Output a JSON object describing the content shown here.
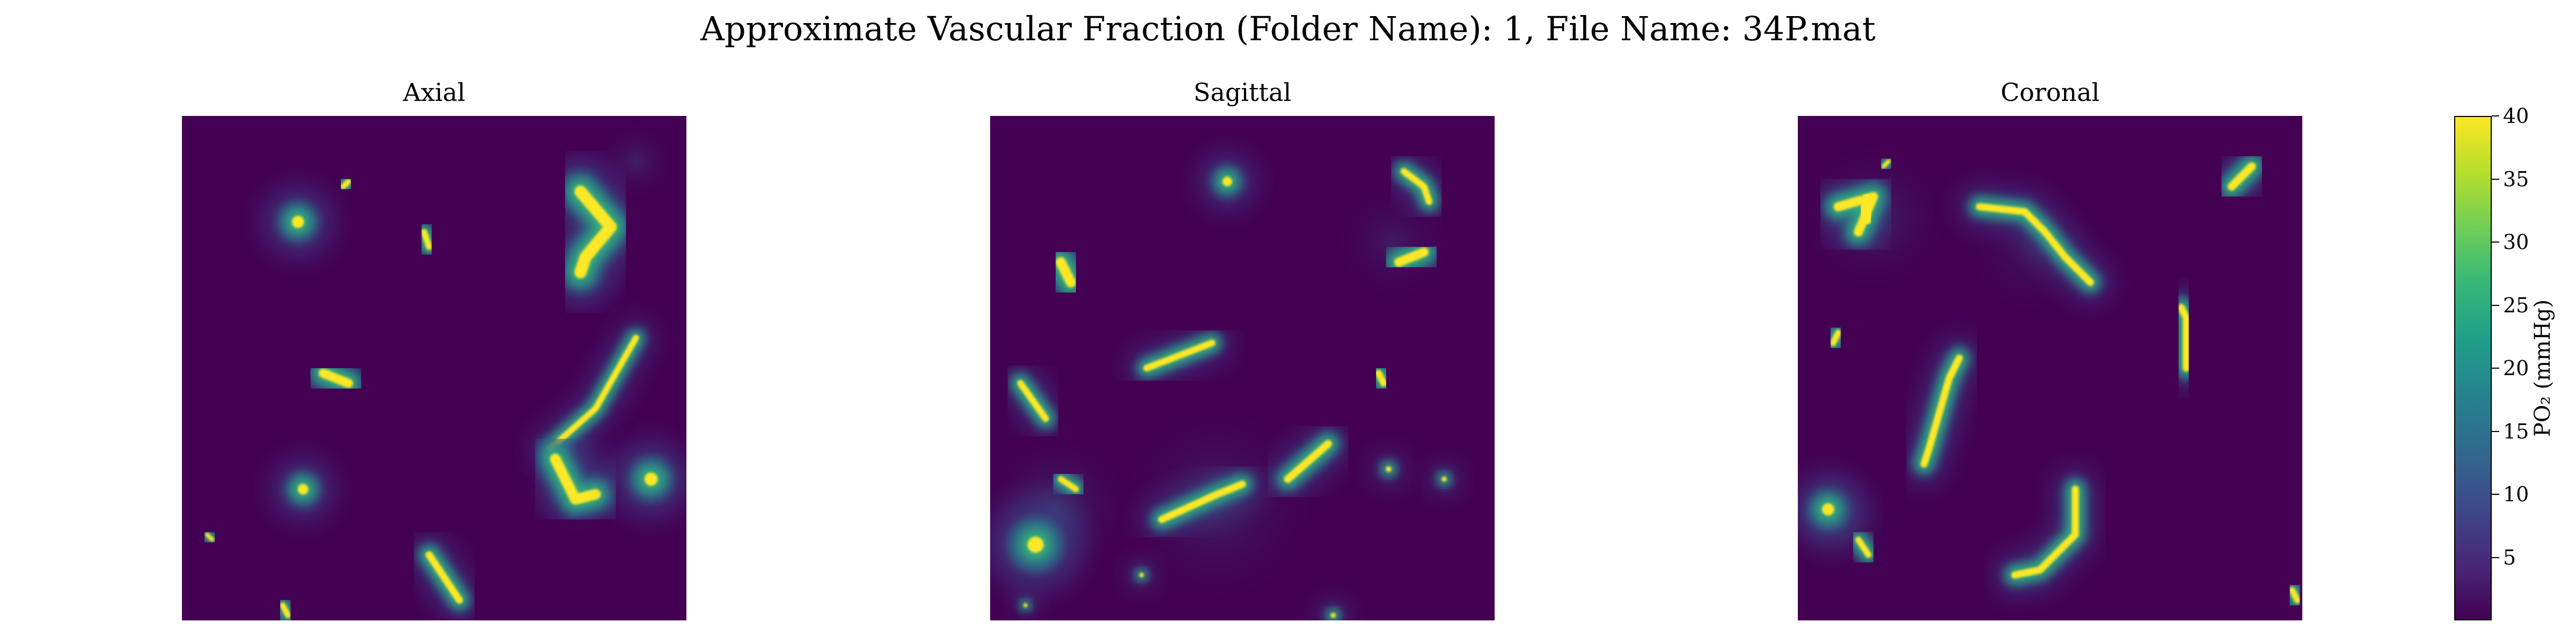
{
  "chart_data": {
    "type": "heatmap",
    "title": "Approximate Vascular Fraction (Folder Name): 1, File Name: 34P.mat",
    "panels": [
      {
        "title": "Axial",
        "vessels": [
          {
            "path": [
              [
                0.23,
                0.21
              ]
            ],
            "w": 0.024
          },
          {
            "path": [
              [
                0.32,
                0.14
              ],
              [
                0.33,
                0.13
              ]
            ],
            "w": 0.011
          },
          {
            "path": [
              [
                0.48,
                0.23
              ],
              [
                0.49,
                0.26
              ]
            ],
            "w": 0.012
          },
          {
            "path": [
              [
                0.53,
                0.18
              ],
              [
                0.55,
                0.18
              ]
            ],
            "w": 0.009
          },
          {
            "path": [
              [
                0.79,
                0.15
              ],
              [
                0.85,
                0.22
              ],
              [
                0.8,
                0.28
              ],
              [
                0.79,
                0.31
              ]
            ],
            "w": 0.024
          },
          {
            "path": [
              [
                0.28,
                0.51
              ],
              [
                0.33,
                0.53
              ]
            ],
            "w": 0.018
          },
          {
            "path": [
              [
                0.9,
                0.44
              ],
              [
                0.82,
                0.58
              ],
              [
                0.73,
                0.66
              ]
            ],
            "w": 0.012
          },
          {
            "path": [
              [
                0.74,
                0.68
              ],
              [
                0.78,
                0.76
              ],
              [
                0.82,
                0.75
              ]
            ],
            "w": 0.021
          },
          {
            "path": [
              [
                0.93,
                0.72
              ]
            ],
            "w": 0.026
          },
          {
            "path": [
              [
                0.24,
                0.74
              ]
            ],
            "w": 0.021
          },
          {
            "path": [
              [
                0.05,
                0.83
              ],
              [
                0.06,
                0.84
              ]
            ],
            "w": 0.008
          },
          {
            "path": [
              [
                0.2,
                0.97
              ],
              [
                0.21,
                0.99
              ]
            ],
            "w": 0.011
          },
          {
            "path": [
              [
                0.49,
                0.87
              ],
              [
                0.55,
                0.96
              ]
            ],
            "w": 0.014
          }
        ],
        "halos": [
          {
            "x": 0.9,
            "y": 0.09,
            "r": 0.08,
            "a": 0.3
          },
          {
            "x": 0.78,
            "y": 0.7,
            "r": 0.14,
            "a": 0.25
          }
        ]
      },
      {
        "title": "Sagittal",
        "vessels": [
          {
            "path": [
              [
                0.47,
                0.13
              ]
            ],
            "w": 0.019
          },
          {
            "path": [
              [
                0.82,
                0.11
              ],
              [
                0.86,
                0.14
              ],
              [
                0.87,
                0.17
              ]
            ],
            "w": 0.013
          },
          {
            "path": [
              [
                0.86,
                0.27
              ],
              [
                0.81,
                0.29
              ]
            ],
            "w": 0.018
          },
          {
            "path": [
              [
                0.14,
                0.29
              ],
              [
                0.16,
                0.33
              ]
            ],
            "w": 0.02
          },
          {
            "path": [
              [
                0.31,
                0.5
              ],
              [
                0.44,
                0.45
              ]
            ],
            "w": 0.013
          },
          {
            "path": [
              [
                0.77,
                0.51
              ],
              [
                0.78,
                0.53
              ]
            ],
            "w": 0.013
          },
          {
            "path": [
              [
                0.97,
                0.53
              ],
              [
                0.98,
                0.53
              ]
            ],
            "w": 0.006
          },
          {
            "path": [
              [
                0.06,
                0.53
              ],
              [
                0.11,
                0.6
              ]
            ],
            "w": 0.013
          },
          {
            "path": [
              [
                0.14,
                0.72
              ],
              [
                0.17,
                0.74
              ]
            ],
            "w": 0.012
          },
          {
            "path": [
              [
                0.09,
                0.85
              ]
            ],
            "w": 0.032
          },
          {
            "path": [
              [
                0.34,
                0.8
              ],
              [
                0.45,
                0.75
              ],
              [
                0.5,
                0.73
              ]
            ],
            "w": 0.014
          },
          {
            "path": [
              [
                0.59,
                0.72
              ],
              [
                0.67,
                0.65
              ]
            ],
            "w": 0.015
          },
          {
            "path": [
              [
                0.79,
                0.7
              ]
            ],
            "w": 0.011
          },
          {
            "path": [
              [
                0.9,
                0.72
              ]
            ],
            "w": 0.01
          },
          {
            "path": [
              [
                0.57,
                0.85
              ],
              [
                0.61,
                0.85
              ]
            ],
            "w": 0.01
          },
          {
            "path": [
              [
                0.66,
                0.84
              ],
              [
                0.69,
                0.84
              ]
            ],
            "w": 0.01
          },
          {
            "path": [
              [
                0.3,
                0.91
              ]
            ],
            "w": 0.009
          },
          {
            "path": [
              [
                0.07,
                0.97
              ]
            ],
            "w": 0.008
          },
          {
            "path": [
              [
                0.68,
                0.99
              ]
            ],
            "w": 0.01
          }
        ],
        "halos": [
          {
            "x": 0.13,
            "y": 0.78,
            "r": 0.15,
            "a": 0.45
          },
          {
            "x": 0.45,
            "y": 0.77,
            "r": 0.2,
            "a": 0.35
          },
          {
            "x": 0.8,
            "y": 0.25,
            "r": 0.12,
            "a": 0.25
          }
        ]
      },
      {
        "title": "Coronal",
        "vessels": [
          {
            "path": [
              [
                0.66,
                0.01
              ],
              [
                0.66,
                0.03
              ]
            ],
            "w": 0.01
          },
          {
            "path": [
              [
                0.17,
                0.1
              ],
              [
                0.18,
                0.09
              ]
            ],
            "w": 0.008
          },
          {
            "path": [
              [
                0.08,
                0.18
              ],
              [
                0.15,
                0.16
              ],
              [
                0.12,
                0.23
              ]
            ],
            "w": 0.018
          },
          {
            "path": [
              [
                0.14,
                0.17
              ],
              [
                0.13,
                0.2
              ]
            ],
            "w": 0.036
          },
          {
            "path": [
              [
                0.36,
                0.18
              ],
              [
                0.45,
                0.19
              ],
              [
                0.49,
                0.23
              ],
              [
                0.53,
                0.28
              ],
              [
                0.58,
                0.33
              ]
            ],
            "w": 0.014
          },
          {
            "path": [
              [
                0.86,
                0.14
              ],
              [
                0.9,
                0.1
              ]
            ],
            "w": 0.016
          },
          {
            "path": [
              [
                0.07,
                0.45
              ],
              [
                0.08,
                0.43
              ]
            ],
            "w": 0.012
          },
          {
            "path": [
              [
                0.76,
                0.38
              ],
              [
                0.77,
                0.4
              ],
              [
                0.77,
                0.5
              ]
            ],
            "w": 0.014
          },
          {
            "path": [
              [
                0.32,
                0.48
              ],
              [
                0.3,
                0.52
              ],
              [
                0.26,
                0.66
              ],
              [
                0.25,
                0.69
              ]
            ],
            "w": 0.014
          },
          {
            "path": [
              [
                0.06,
                0.78
              ]
            ],
            "w": 0.024
          },
          {
            "path": [
              [
                0.12,
                0.84
              ],
              [
                0.14,
                0.87
              ]
            ],
            "w": 0.012
          },
          {
            "path": [
              [
                0.55,
                0.74
              ],
              [
                0.55,
                0.83
              ],
              [
                0.48,
                0.9
              ],
              [
                0.43,
                0.91
              ]
            ],
            "w": 0.014
          },
          {
            "path": [
              [
                0.97,
                0.91
              ],
              [
                0.99,
                0.91
              ]
            ],
            "w": 0.014
          },
          {
            "path": [
              [
                0.98,
                0.94
              ],
              [
                0.99,
                0.96
              ]
            ],
            "w": 0.012
          }
        ],
        "halos": [
          {
            "x": 0.15,
            "y": 0.2,
            "r": 0.15,
            "a": 0.35
          },
          {
            "x": 0.47,
            "y": 0.26,
            "r": 0.14,
            "a": 0.25
          },
          {
            "x": 0.08,
            "y": 0.8,
            "r": 0.13,
            "a": 0.35
          }
        ]
      }
    ],
    "colorbar": {
      "label": "PO₂ (mmHg)",
      "min": 0,
      "max": 40,
      "ticks": [
        5,
        10,
        15,
        20,
        25,
        30,
        35,
        40
      ],
      "colormap": [
        "#440154",
        "#482878",
        "#3e4989",
        "#31688e",
        "#26828e",
        "#1f9e89",
        "#35b779",
        "#6ece58",
        "#b5de2b",
        "#fde725"
      ]
    }
  }
}
